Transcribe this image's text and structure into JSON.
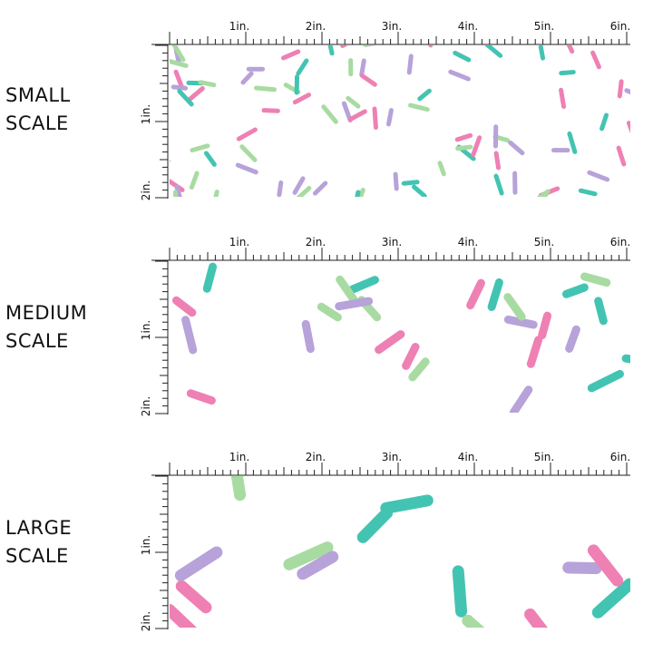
{
  "panels": [
    {
      "id": "small",
      "label_line1": "SMALL",
      "label_line2": "SCALE",
      "sprinkle_scale": 1
    },
    {
      "id": "medium",
      "label_line1": "MEDIUM",
      "label_line2": "SCALE",
      "sprinkle_scale": 2
    },
    {
      "id": "large",
      "label_line1": "LARGE",
      "label_line2": "SCALE",
      "sprinkle_scale": 3
    }
  ],
  "ruler": {
    "horizontal_labels": [
      "1in.",
      "2in.",
      "3in.",
      "4in.",
      "5in.",
      "6in."
    ],
    "vertical_labels": [
      "1in.",
      "2in."
    ]
  },
  "colors": {
    "teal": "#43c4b2",
    "pink": "#ee80b3",
    "lavender": "#b7a2d9",
    "green": "#a8dba2",
    "ruler": "#222222"
  }
}
